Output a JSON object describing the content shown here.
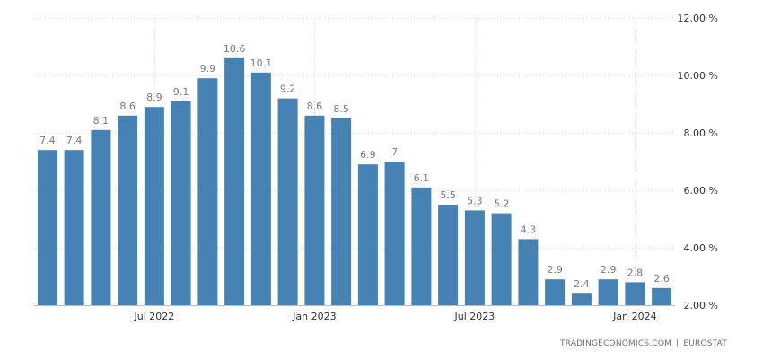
{
  "chart_data": {
    "type": "bar",
    "categories": [
      "2022-03",
      "2022-04",
      "2022-05",
      "2022-06",
      "2022-07",
      "2022-08",
      "2022-09",
      "2022-10",
      "2022-11",
      "2022-12",
      "2023-01",
      "2023-02",
      "2023-03",
      "2023-04",
      "2023-05",
      "2023-06",
      "2023-07",
      "2023-08",
      "2023-09",
      "2023-10",
      "2023-11",
      "2023-12",
      "2024-01",
      "2024-02"
    ],
    "values": [
      7.4,
      7.4,
      8.1,
      8.6,
      8.9,
      9.1,
      9.9,
      10.6,
      10.1,
      9.2,
      8.6,
      8.5,
      6.9,
      7,
      6.1,
      5.5,
      5.3,
      5.2,
      4.3,
      2.9,
      2.4,
      2.9,
      2.8,
      2.6
    ],
    "value_labels": [
      "7.4",
      "7.4",
      "8.1",
      "8.6",
      "8.9",
      "9.1",
      "9.9",
      "10.6",
      "10.1",
      "9.2",
      "8.6",
      "8.5",
      "6.9",
      "7",
      "6.1",
      "5.5",
      "5.3",
      "5.2",
      "4.3",
      "2.9",
      "2.4",
      "2.9",
      "2.8",
      "2.6"
    ],
    "x_ticks": [
      {
        "category": "2022-07",
        "label": "Jul 2022"
      },
      {
        "category": "2023-01",
        "label": "Jan 2023"
      },
      {
        "category": "2023-07",
        "label": "Jul 2023"
      },
      {
        "category": "2024-01",
        "label": "Jan 2024"
      }
    ],
    "y_ticks": [
      {
        "value": 2,
        "label": "2.00 %"
      },
      {
        "value": 4,
        "label": "4.00 %"
      },
      {
        "value": 6,
        "label": "6.00 %"
      },
      {
        "value": 8,
        "label": "8.00 %"
      },
      {
        "value": 10,
        "label": "10.00 %"
      },
      {
        "value": 12,
        "label": "12.00 %"
      }
    ],
    "ylim": [
      2,
      12
    ],
    "y_axis_side": "right",
    "grid": true,
    "title": "",
    "xlabel": "",
    "ylabel": ""
  },
  "colors": {
    "bar": "#4682b4",
    "label": "#7a7a7a",
    "tick": "#333333",
    "grid": "#d9d9d9"
  },
  "credit": {
    "source1": "TRADINGECONOMICS.COM",
    "separator": "|",
    "source2": "EUROSTAT"
  }
}
